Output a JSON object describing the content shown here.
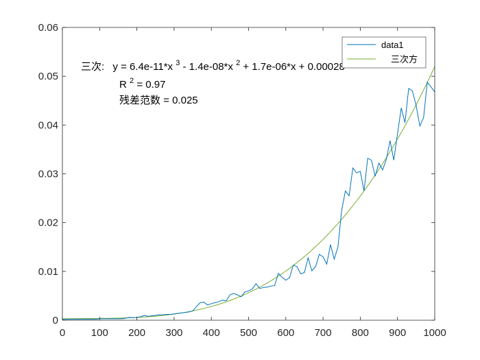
{
  "chart_data": {
    "type": "line",
    "title": "",
    "xlabel": "",
    "ylabel": "",
    "xlim": [
      0,
      1000
    ],
    "ylim": [
      0,
      0.06
    ],
    "x_ticks": [
      0,
      100,
      200,
      300,
      400,
      500,
      600,
      700,
      800,
      900,
      1000
    ],
    "x_tick_labels": [
      "0",
      "100",
      "200",
      "300",
      "400",
      "500",
      "600",
      "700",
      "800",
      "900",
      "1000"
    ],
    "y_ticks": [
      0,
      0.01,
      0.02,
      0.03,
      0.04,
      0.05,
      0.06
    ],
    "y_tick_labels": [
      "0",
      "0.01",
      "0.02",
      "0.03",
      "0.04",
      "0.05",
      "0.06"
    ],
    "grid": false,
    "legend_position": "top-right",
    "series": [
      {
        "name": "data1",
        "color": "#0072BD",
        "x": [
          0,
          10,
          20,
          30,
          40,
          50,
          60,
          70,
          80,
          90,
          100,
          110,
          120,
          130,
          140,
          150,
          160,
          170,
          180,
          190,
          200,
          210,
          220,
          230,
          240,
          250,
          260,
          270,
          280,
          290,
          300,
          310,
          320,
          330,
          340,
          350,
          360,
          370,
          380,
          390,
          400,
          410,
          420,
          430,
          440,
          450,
          460,
          470,
          480,
          490,
          500,
          510,
          520,
          530,
          540,
          550,
          560,
          570,
          580,
          590,
          600,
          610,
          620,
          630,
          640,
          650,
          660,
          670,
          680,
          690,
          700,
          710,
          720,
          730,
          740,
          750,
          760,
          770,
          780,
          790,
          800,
          810,
          820,
          830,
          840,
          850,
          860,
          870,
          880,
          890,
          900,
          910,
          920,
          930,
          940,
          950,
          960,
          970,
          980,
          990,
          1000
        ],
        "y": [
          0.0002,
          0.0002,
          0.0002,
          0.0002,
          0.0002,
          0.0002,
          0.0002,
          0.0002,
          0.0002,
          0.0002,
          0.0003,
          0.0003,
          0.0003,
          0.0003,
          0.0003,
          0.0003,
          0.0003,
          0.0004,
          0.0006,
          0.0005,
          0.0006,
          0.0007,
          0.001,
          0.0008,
          0.0009,
          0.001,
          0.0011,
          0.0011,
          0.0012,
          0.0012,
          0.0013,
          0.0014,
          0.0015,
          0.0016,
          0.0017,
          0.0019,
          0.0028,
          0.0036,
          0.0037,
          0.0031,
          0.0034,
          0.0036,
          0.0038,
          0.0041,
          0.004,
          0.0052,
          0.0055,
          0.0052,
          0.0048,
          0.0058,
          0.006,
          0.0064,
          0.0075,
          0.0065,
          0.0067,
          0.0068,
          0.007,
          0.0071,
          0.0096,
          0.0088,
          0.0082,
          0.0087,
          0.0113,
          0.011,
          0.0095,
          0.0098,
          0.0128,
          0.0101,
          0.011,
          0.0135,
          0.013,
          0.0115,
          0.0155,
          0.0125,
          0.015,
          0.0225,
          0.0265,
          0.0255,
          0.0312,
          0.0302,
          0.0305,
          0.0265,
          0.0332,
          0.0328,
          0.0295,
          0.0322,
          0.0308,
          0.033,
          0.0368,
          0.0328,
          0.0382,
          0.0435,
          0.0405,
          0.0475,
          0.047,
          0.044,
          0.0398,
          0.0415,
          0.0488,
          0.0478,
          0.0468
        ]
      },
      {
        "name": "三次方",
        "color": "#77AC30",
        "type": "fit-curve",
        "coefficients": {
          "a3": 6.4e-11,
          "a2": -1.4e-08,
          "a1": 1.7e-06,
          "a0": 0.00028
        },
        "x_range": [
          0,
          1000
        ]
      }
    ],
    "annotations": {
      "fit_prefix": "三次:",
      "fit_y": "y = 6.4e-11*x",
      "fit_exp3": "3",
      "fit_mid": " - 1.4e-08*x",
      "fit_exp2": "2",
      "fit_tail": " + 1.7e-06*x + 0.00028",
      "r_prefix": "R",
      "r_exp": "2",
      "r_value": " = 0.97",
      "residual": "残差范数 = 0.025"
    }
  }
}
